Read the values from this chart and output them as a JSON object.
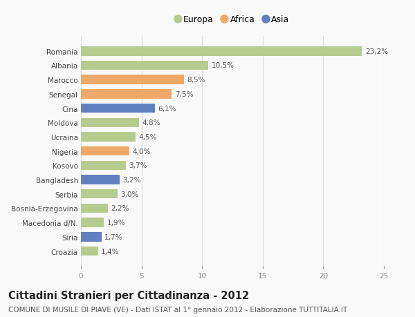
{
  "countries": [
    "Romania",
    "Albania",
    "Marocco",
    "Senegal",
    "Cina",
    "Moldova",
    "Ucraina",
    "Nigeria",
    "Kosovo",
    "Bangladesh",
    "Serbia",
    "Bosnia-Erzegovina",
    "Macedonia d/N.",
    "Siria",
    "Croazia"
  ],
  "values": [
    23.2,
    10.5,
    8.5,
    7.5,
    6.1,
    4.8,
    4.5,
    4.0,
    3.7,
    3.2,
    3.0,
    2.2,
    1.9,
    1.7,
    1.4
  ],
  "labels": [
    "23,2%",
    "10,5%",
    "8,5%",
    "7,5%",
    "6,1%",
    "4,8%",
    "4,5%",
    "4,0%",
    "3,7%",
    "3,2%",
    "3,0%",
    "2,2%",
    "1,9%",
    "1,7%",
    "1,4%"
  ],
  "continents": [
    "Europa",
    "Europa",
    "Africa",
    "Africa",
    "Asia",
    "Europa",
    "Europa",
    "Africa",
    "Europa",
    "Asia",
    "Europa",
    "Europa",
    "Europa",
    "Asia",
    "Europa"
  ],
  "colors": {
    "Europa": "#b5cc8e",
    "Africa": "#f0a868",
    "Asia": "#6080c0"
  },
  "legend_labels": [
    "Europa",
    "Africa",
    "Asia"
  ],
  "title": "Cittadini Stranieri per Cittadinanza - 2012",
  "subtitle": "COMUNE DI MUSILE DI PIAVE (VE) - Dati ISTAT al 1° gennaio 2012 - Elaborazione TUTTITALIA.IT",
  "xlim": [
    0,
    25
  ],
  "xticks": [
    0,
    5,
    10,
    15,
    20,
    25
  ],
  "bg_color": "#f9f9f9",
  "grid_color": "#dddddd",
  "bar_height": 0.65,
  "label_fontsize": 7.5,
  "tick_fontsize": 7.5,
  "title_fontsize": 10.5,
  "subtitle_fontsize": 7.5
}
